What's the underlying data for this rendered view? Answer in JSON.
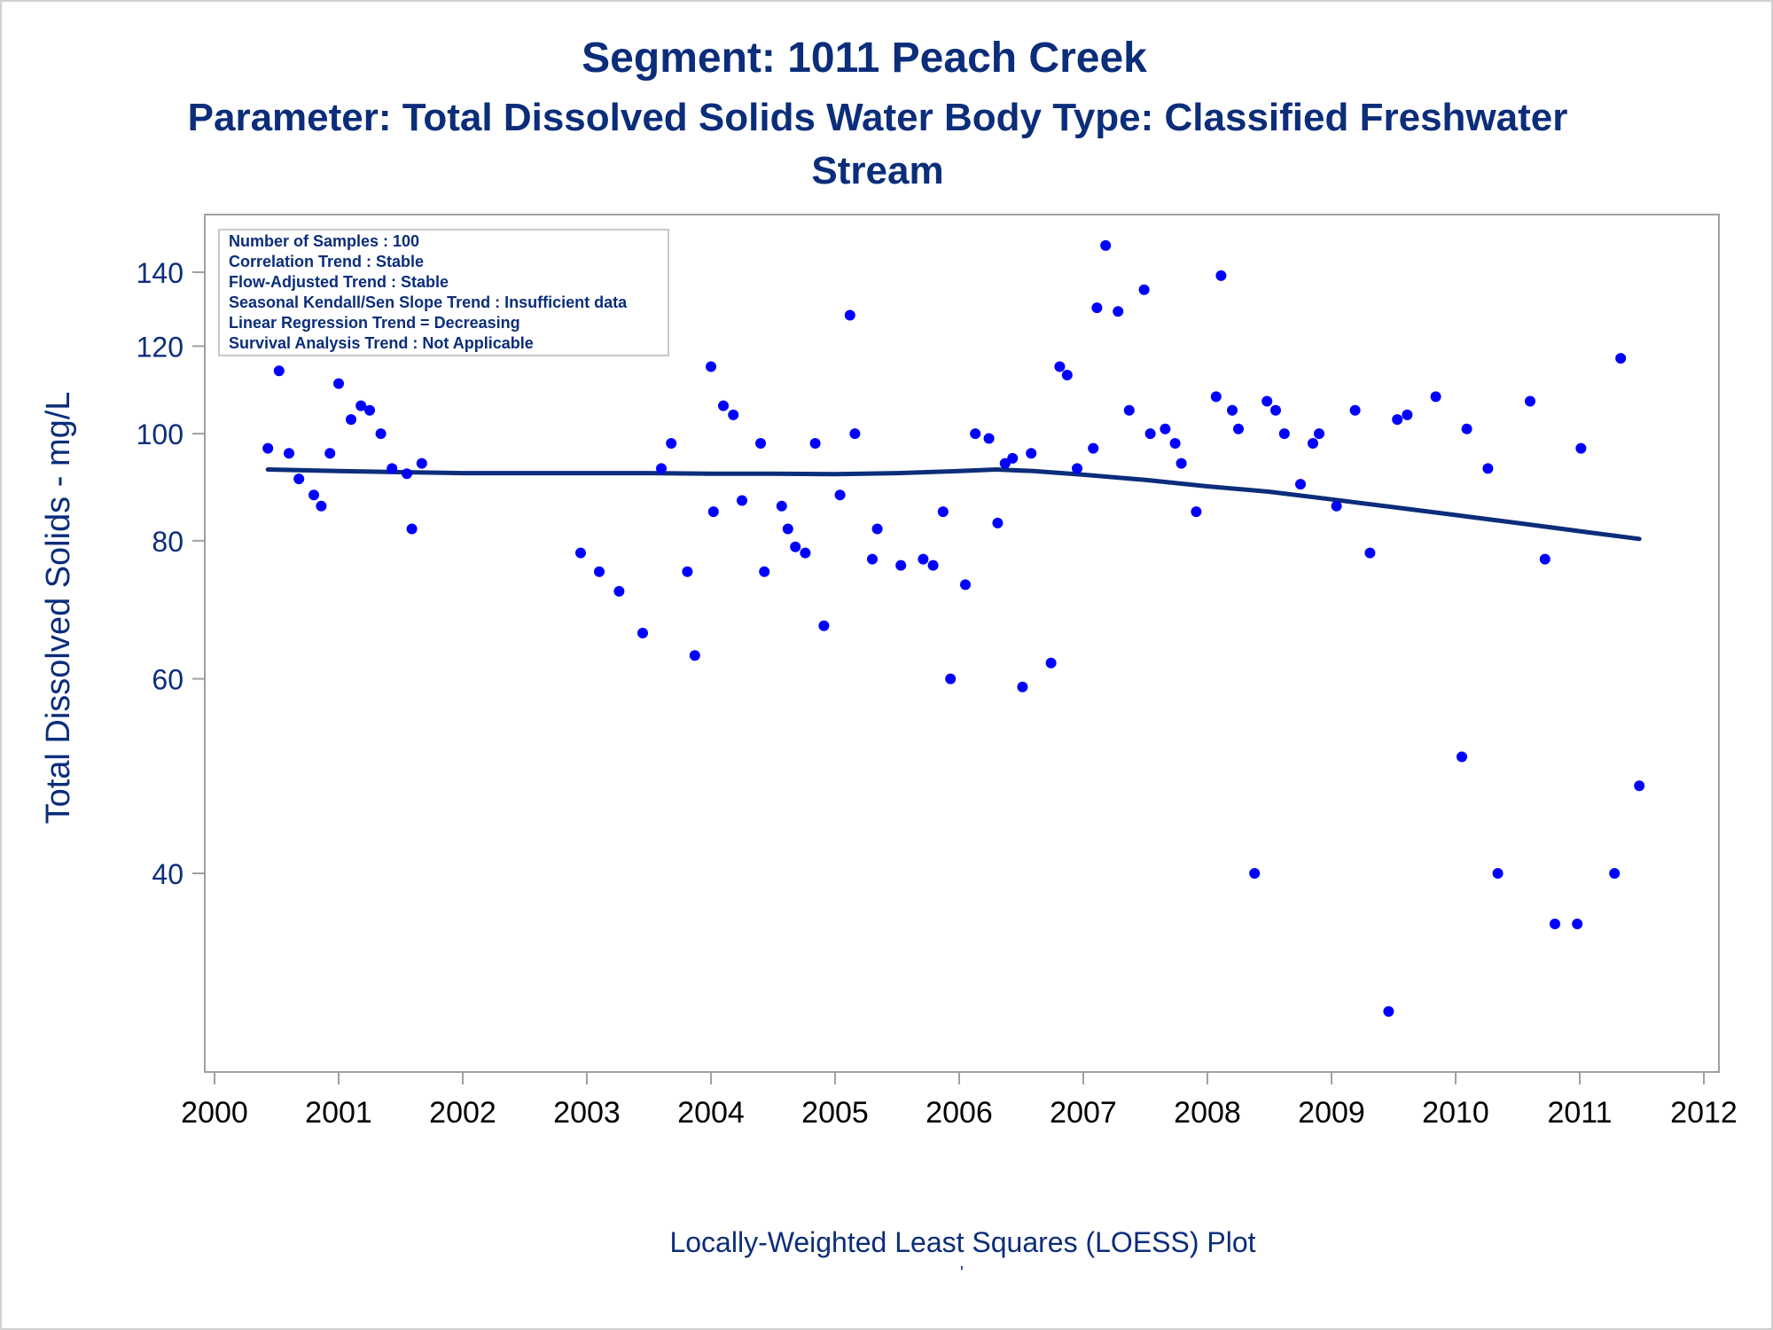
{
  "titles": {
    "line1": "Segment: 1011  Peach Creek",
    "line2": "Parameter: Total Dissolved Solids   Water Body Type: Classified Freshwater",
    "line3": "Stream"
  },
  "footnote": "Locally-Weighted Least Squares (LOESS) Plot",
  "footnote_mark": "'",
  "stats_box": [
    "Number of Samples : 100",
    "Correlation Trend : Stable",
    "Flow-Adjusted Trend : Stable",
    "Seasonal Kendall/Sen Slope Trend : Insufficient data",
    "Linear Regression Trend = Decreasing",
    "Survival Analysis Trend : Not Applicable"
  ],
  "colors": {
    "title": "#0b2d7a",
    "points": "#0000ff",
    "loess_line": "#0b2d7a",
    "frame": "#a0a0a0"
  },
  "chart_data": {
    "type": "scatter",
    "ylabel": "Total Dissolved Solids - mg/L",
    "xlabel": "",
    "y_scale": "log",
    "xlim": [
      2000,
      2012
    ],
    "ylim": [
      25,
      150
    ],
    "x_ticks": [
      2000,
      2001,
      2002,
      2003,
      2004,
      2005,
      2006,
      2007,
      2008,
      2009,
      2010,
      2011,
      2012
    ],
    "y_ticks": [
      40,
      60,
      80,
      100,
      120,
      140
    ],
    "grid": false,
    "series": [
      {
        "points": [
          [
            2000.43,
            97
          ],
          [
            2000.52,
            114
          ],
          [
            2000.6,
            96
          ],
          [
            2000.68,
            91
          ],
          [
            2000.8,
            88
          ],
          [
            2000.86,
            86
          ],
          [
            2000.93,
            96
          ],
          [
            2001.0,
            111
          ],
          [
            2001.1,
            103
          ],
          [
            2001.18,
            106
          ],
          [
            2001.25,
            105
          ],
          [
            2001.34,
            100
          ],
          [
            2001.43,
            93
          ],
          [
            2001.55,
            92
          ],
          [
            2001.59,
            82
          ],
          [
            2001.67,
            94
          ],
          [
            2002.95,
            78
          ],
          [
            2003.1,
            75
          ],
          [
            2003.26,
            72
          ],
          [
            2003.45,
            66
          ],
          [
            2003.6,
            93
          ],
          [
            2003.68,
            98
          ],
          [
            2003.81,
            75
          ],
          [
            2003.87,
            63
          ],
          [
            2004.0,
            115
          ],
          [
            2004.02,
            85
          ],
          [
            2004.1,
            106
          ],
          [
            2004.18,
            104
          ],
          [
            2004.25,
            87
          ],
          [
            2004.4,
            98
          ],
          [
            2004.43,
            75
          ],
          [
            2004.57,
            86
          ],
          [
            2004.62,
            82
          ],
          [
            2004.68,
            79
          ],
          [
            2004.76,
            78
          ],
          [
            2004.84,
            98
          ],
          [
            2004.91,
            67
          ],
          [
            2005.04,
            88
          ],
          [
            2005.12,
            128
          ],
          [
            2005.16,
            100
          ],
          [
            2005.3,
            77
          ],
          [
            2005.34,
            82
          ],
          [
            2005.53,
            76
          ],
          [
            2005.71,
            77
          ],
          [
            2005.79,
            76
          ],
          [
            2005.87,
            85
          ],
          [
            2005.93,
            60
          ],
          [
            2006.05,
            73
          ],
          [
            2006.13,
            100
          ],
          [
            2006.24,
            99
          ],
          [
            2006.31,
            83
          ],
          [
            2006.37,
            94
          ],
          [
            2006.43,
            95
          ],
          [
            2006.51,
            59
          ],
          [
            2006.58,
            96
          ],
          [
            2006.74,
            62
          ],
          [
            2006.81,
            115
          ],
          [
            2006.87,
            113
          ],
          [
            2006.95,
            93
          ],
          [
            2007.08,
            97
          ],
          [
            2007.11,
            130
          ],
          [
            2007.18,
            148
          ],
          [
            2007.28,
            129
          ],
          [
            2007.37,
            105
          ],
          [
            2007.49,
            135
          ],
          [
            2007.54,
            100
          ],
          [
            2007.66,
            101
          ],
          [
            2007.74,
            98
          ],
          [
            2007.79,
            94
          ],
          [
            2007.91,
            85
          ],
          [
            2008.07,
            108
          ],
          [
            2008.11,
            139
          ],
          [
            2008.2,
            105
          ],
          [
            2008.25,
            101
          ],
          [
            2008.38,
            40
          ],
          [
            2008.48,
            107
          ],
          [
            2008.55,
            105
          ],
          [
            2008.62,
            100
          ],
          [
            2008.75,
            90
          ],
          [
            2008.85,
            98
          ],
          [
            2008.9,
            100
          ],
          [
            2009.04,
            86
          ],
          [
            2009.19,
            105
          ],
          [
            2009.31,
            78
          ],
          [
            2009.46,
            30
          ],
          [
            2009.53,
            103
          ],
          [
            2009.61,
            104
          ],
          [
            2009.84,
            108
          ],
          [
            2010.05,
            51
          ],
          [
            2010.09,
            101
          ],
          [
            2010.26,
            93
          ],
          [
            2010.34,
            40
          ],
          [
            2010.6,
            107
          ],
          [
            2010.72,
            77
          ],
          [
            2010.8,
            36
          ],
          [
            2010.98,
            36
          ],
          [
            2011.01,
            97
          ],
          [
            2011.28,
            40
          ],
          [
            2011.33,
            117
          ],
          [
            2011.48,
            48
          ]
        ]
      }
    ],
    "loess": [
      [
        2000.43,
        92.8
      ],
      [
        2001.0,
        92.5
      ],
      [
        2001.5,
        92.3
      ],
      [
        2002.0,
        92.1
      ],
      [
        2002.5,
        92.1
      ],
      [
        2003.0,
        92.1
      ],
      [
        2003.5,
        92.1
      ],
      [
        2004.0,
        92.0
      ],
      [
        2004.5,
        92.0
      ],
      [
        2005.0,
        91.9
      ],
      [
        2005.5,
        92.1
      ],
      [
        2006.0,
        92.5
      ],
      [
        2006.3,
        92.8
      ],
      [
        2006.6,
        92.5
      ],
      [
        2007.0,
        91.8
      ],
      [
        2007.5,
        90.8
      ],
      [
        2008.0,
        89.6
      ],
      [
        2008.5,
        88.6
      ],
      [
        2009.0,
        87.2
      ],
      [
        2009.5,
        85.8
      ],
      [
        2010.0,
        84.4
      ],
      [
        2010.5,
        83.0
      ],
      [
        2011.0,
        81.6
      ],
      [
        2011.48,
        80.3
      ]
    ]
  }
}
